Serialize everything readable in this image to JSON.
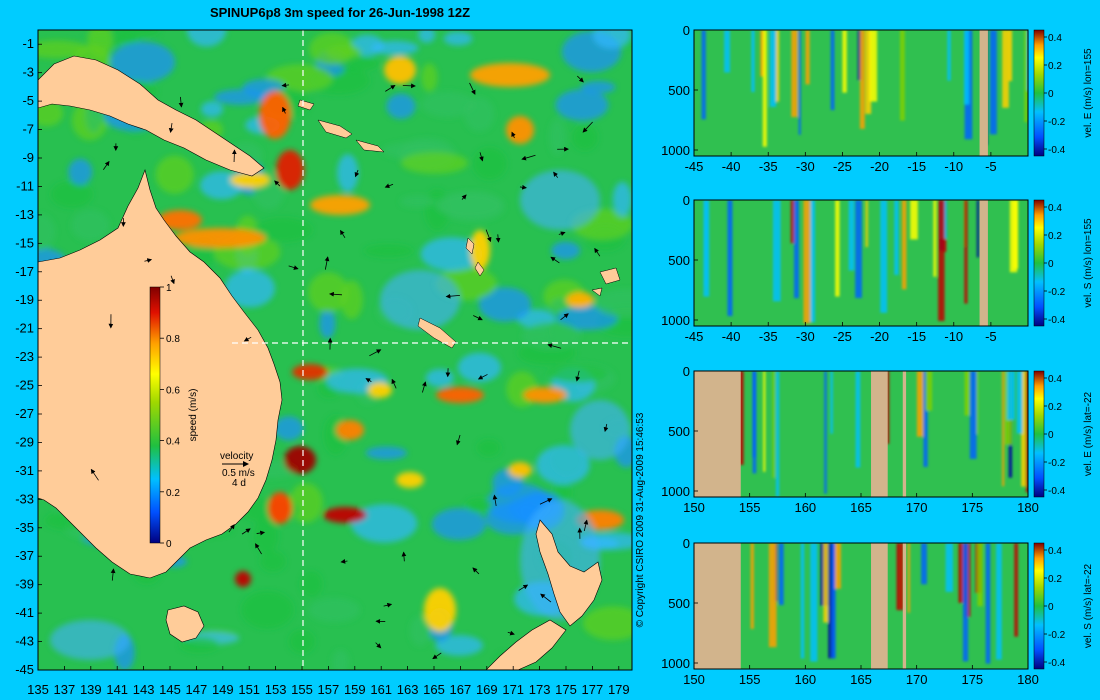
{
  "title": "SPINUP6p8 3m speed for 26-Jun-1998 12Z",
  "copyright": "© Copyright CSIRO 2009   31-Aug-2009 15:46:53",
  "colors": {
    "background": "#00ccff",
    "land": "#ffcc99",
    "section_land": "#d2b48c",
    "colormap": [
      "#000080",
      "#0000ff",
      "#0080ff",
      "#00c0ff",
      "#40e0a0",
      "#20c040",
      "#80d000",
      "#ffff00",
      "#ffa000",
      "#ff4000",
      "#c00000",
      "#800000"
    ]
  },
  "map": {
    "lon_ticks": [
      "135",
      "137",
      "139",
      "141",
      "143",
      "145",
      "147",
      "149",
      "151",
      "153",
      "155",
      "157",
      "159",
      "161",
      "163",
      "165",
      "167",
      "169",
      "171",
      "173",
      "175",
      "177",
      "179"
    ],
    "lat_ticks": [
      "-1",
      "-3",
      "-5",
      "-7",
      "-9",
      "-11",
      "-13",
      "-15",
      "-17",
      "-19",
      "-21",
      "-23",
      "-25",
      "-27",
      "-29",
      "-31",
      "-33",
      "-35",
      "-37",
      "-39",
      "-41",
      "-43",
      "-45"
    ],
    "lon_range": [
      135,
      180
    ],
    "lat_range": [
      -45,
      0
    ],
    "section_lon": 155,
    "section_lat": -22,
    "colorbar": {
      "label": "speed (m/s)",
      "ticks": [
        "1",
        "0.8",
        "0.6",
        "0.4",
        "0.2",
        "0"
      ],
      "range": [
        0,
        1
      ]
    },
    "velocity_key": {
      "label": "velocity",
      "speed": "0.5 m/s",
      "time": "4 d"
    }
  },
  "panels": [
    {
      "x_ticks": [
        "-45",
        "-40",
        "-35",
        "-30",
        "-25",
        "-20",
        "-15",
        "-10",
        "-5"
      ],
      "y_ticks": [
        "0",
        "500",
        "1000"
      ],
      "cbar_ticks": [
        "0.4",
        "0.2",
        "0",
        "-0.2",
        "-0.4"
      ],
      "cbar_label": "vel. E (m/s) lon=155",
      "x_range": [
        -45,
        0
      ],
      "depth_range": [
        0,
        1050
      ],
      "color_range": [
        -0.45,
        0.45
      ]
    },
    {
      "x_ticks": [
        "-45",
        "-40",
        "-35",
        "-30",
        "-25",
        "-20",
        "-15",
        "-10",
        "-5"
      ],
      "y_ticks": [
        "0",
        "500",
        "1000"
      ],
      "cbar_ticks": [
        "0.4",
        "0.2",
        "0",
        "-0.2",
        "-0.4"
      ],
      "cbar_label": "vel. S (m/s) lon=155",
      "x_range": [
        -45,
        0
      ],
      "depth_range": [
        0,
        1050
      ],
      "color_range": [
        -0.45,
        0.45
      ]
    },
    {
      "x_ticks": [
        "150",
        "155",
        "160",
        "165",
        "170",
        "175",
        "180"
      ],
      "y_ticks": [
        "0",
        "500",
        "1000"
      ],
      "cbar_ticks": [
        "0.4",
        "0.2",
        "0",
        "-0.2",
        "-0.4"
      ],
      "cbar_label": "vel. E (m/s) lat=-22",
      "x_range": [
        150,
        180
      ],
      "depth_range": [
        0,
        1050
      ],
      "color_range": [
        -0.45,
        0.45
      ]
    },
    {
      "x_ticks": [
        "150",
        "155",
        "160",
        "165",
        "170",
        "175",
        "180"
      ],
      "y_ticks": [
        "0",
        "500",
        "1000"
      ],
      "cbar_ticks": [
        "0.4",
        "0.2",
        "0",
        "-0.2",
        "-0.4"
      ],
      "cbar_label": "vel. S (m/s) lat=-22",
      "x_range": [
        150,
        180
      ],
      "depth_range": [
        0,
        1050
      ],
      "color_range": [
        -0.45,
        0.45
      ]
    }
  ]
}
